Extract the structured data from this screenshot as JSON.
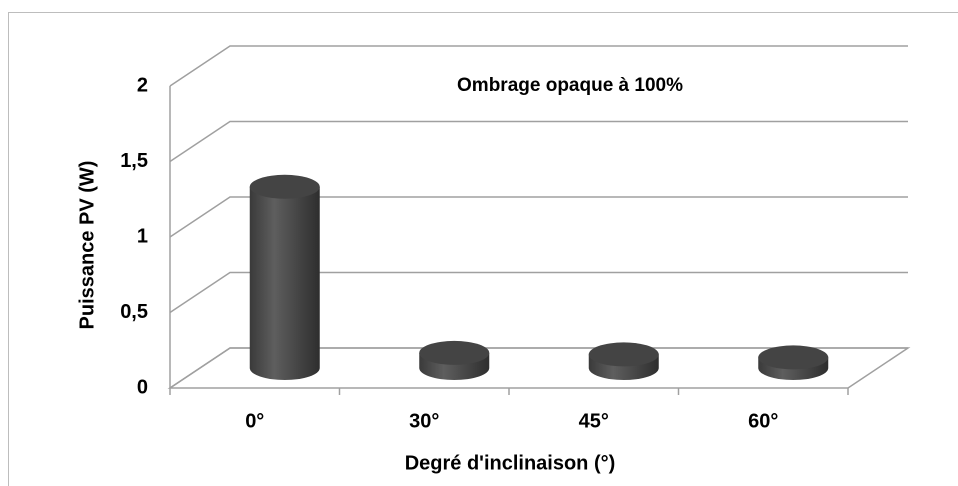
{
  "chart_data": {
    "type": "bar3d",
    "title": "Ombrage opaque à 100%",
    "x_label": "Degré d'inclinaison (°)",
    "y_label": "Puissance PV (W)",
    "categories": [
      "0°",
      "30°",
      "45°",
      "60°"
    ],
    "values": [
      1.2,
      0.1,
      0.09,
      0.07
    ],
    "color": "#4a4a4a",
    "ylim": [
      0,
      2
    ],
    "yticks": [
      0,
      {
        "value": 0.5,
        "label": "0,5"
      },
      1,
      {
        "value": 1.5,
        "label": "1,5"
      },
      2
    ],
    "grid": true
  }
}
